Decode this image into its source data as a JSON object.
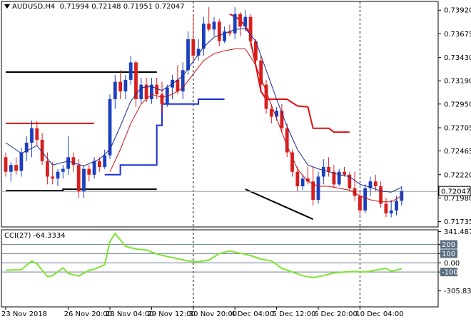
{
  "header": {
    "symbol": "AUDUSD,H4",
    "ohlc": "0.71994 0.72148 0.71951 0.72047"
  },
  "cci_panel": {
    "label": "CCI(27) -64.3334"
  },
  "chart_data": [
    {
      "type": "candlestick",
      "panel": "price",
      "ylim": [
        0.7168,
        0.7401
      ],
      "y_ticks": [
        "0.73920",
        "0.73675",
        "0.73430",
        "0.73190",
        "0.72950",
        "0.72705",
        "0.72465",
        "0.72220",
        "0.71980",
        "0.71735"
      ],
      "y_tick_values": [
        0.7392,
        0.73675,
        0.7343,
        0.7319,
        0.7295,
        0.72705,
        0.72465,
        0.7222,
        0.7198,
        0.71735
      ],
      "current_price": "0.72047",
      "current_price_value": 0.72047,
      "x_labels": [
        "23 Nov 2018",
        "26 Nov 20:00",
        "28 Nov 04:00",
        "29 Nov 12:00",
        "30 Nov 20:00",
        "4 Dec 04:00",
        "5 Dec 12:00",
        "6 Dec 20:00",
        "10 Dec 04:00"
      ],
      "x_label_bars": [
        0,
        12,
        20,
        28,
        36,
        44,
        52,
        60,
        68
      ],
      "separator_bars": [
        36,
        68
      ],
      "colors": {
        "up": "#1c3fbf",
        "down": "#d81e1e",
        "fast_ma": "#1a2b8c",
        "slow_ma": "#c81414",
        "step_blue": "#1c2fd0",
        "step_red": "#e01010",
        "black": "#000000"
      },
      "candles": [
        [
          0.724,
          0.7245,
          0.722,
          0.7225
        ],
        [
          0.7225,
          0.7235,
          0.7215,
          0.7232
        ],
        [
          0.7232,
          0.724,
          0.7222,
          0.7226
        ],
        [
          0.7226,
          0.725,
          0.722,
          0.7245
        ],
        [
          0.7245,
          0.7262,
          0.7236,
          0.7255
        ],
        [
          0.7255,
          0.7278,
          0.724,
          0.727
        ],
        [
          0.727,
          0.7277,
          0.7252,
          0.7258
        ],
        [
          0.7258,
          0.7265,
          0.7232,
          0.7236
        ],
        [
          0.7236,
          0.7245,
          0.7212,
          0.722
        ],
        [
          0.722,
          0.7235,
          0.7212,
          0.7218
        ],
        [
          0.7218,
          0.7228,
          0.721,
          0.7225
        ],
        [
          0.7225,
          0.7232,
          0.7218,
          0.7228
        ],
        [
          0.7228,
          0.7262,
          0.7222,
          0.724
        ],
        [
          0.724,
          0.7245,
          0.7225,
          0.7232
        ],
        [
          0.7232,
          0.7238,
          0.7198,
          0.7205
        ],
        [
          0.7205,
          0.7232,
          0.7198,
          0.7228
        ],
        [
          0.7228,
          0.7232,
          0.7215,
          0.7222
        ],
        [
          0.7222,
          0.724,
          0.7218,
          0.7236
        ],
        [
          0.7236,
          0.724,
          0.7225,
          0.723
        ],
        [
          0.723,
          0.7248,
          0.7228,
          0.7242
        ],
        [
          0.7242,
          0.7305,
          0.7238,
          0.73
        ],
        [
          0.73,
          0.7325,
          0.729,
          0.7318
        ],
        [
          0.7318,
          0.733,
          0.73,
          0.7308
        ],
        [
          0.7308,
          0.7325,
          0.73,
          0.732
        ],
        [
          0.732,
          0.7345,
          0.7315,
          0.7338
        ],
        [
          0.7338,
          0.734,
          0.7292,
          0.73
        ],
        [
          0.73,
          0.7322,
          0.7295,
          0.7315
        ],
        [
          0.7315,
          0.7322,
          0.7297,
          0.73
        ],
        [
          0.73,
          0.7322,
          0.7295,
          0.7315
        ],
        [
          0.7315,
          0.7322,
          0.73,
          0.7305
        ],
        [
          0.7305,
          0.7318,
          0.7286,
          0.7295
        ],
        [
          0.7295,
          0.7315,
          0.7292,
          0.7312
        ],
        [
          0.7312,
          0.7325,
          0.73,
          0.732
        ],
        [
          0.732,
          0.7335,
          0.7305,
          0.7308
        ],
        [
          0.7308,
          0.7338,
          0.73,
          0.733
        ],
        [
          0.733,
          0.737,
          0.7325,
          0.7362
        ],
        [
          0.7362,
          0.7388,
          0.734,
          0.7345
        ],
        [
          0.7345,
          0.7362,
          0.734,
          0.7352
        ],
        [
          0.7352,
          0.7385,
          0.7345,
          0.7378
        ],
        [
          0.7378,
          0.7395,
          0.737,
          0.7372
        ],
        [
          0.7372,
          0.7385,
          0.7365,
          0.738
        ],
        [
          0.738,
          0.7383,
          0.7355,
          0.736
        ],
        [
          0.736,
          0.7375,
          0.7358,
          0.737
        ],
        [
          0.737,
          0.7377,
          0.7365,
          0.7368
        ],
        [
          0.7368,
          0.7395,
          0.7362,
          0.7388
        ],
        [
          0.7388,
          0.739,
          0.7365,
          0.7375
        ],
        [
          0.7375,
          0.7392,
          0.737,
          0.7385
        ],
        [
          0.7385,
          0.7388,
          0.7355,
          0.736
        ],
        [
          0.736,
          0.7362,
          0.7335,
          0.734
        ],
        [
          0.734,
          0.7345,
          0.731,
          0.7315
        ],
        [
          0.7315,
          0.732,
          0.7285,
          0.729
        ],
        [
          0.729,
          0.7295,
          0.7275,
          0.7282
        ],
        [
          0.7282,
          0.7292,
          0.7278,
          0.7288
        ],
        [
          0.7288,
          0.7295,
          0.7265,
          0.727
        ],
        [
          0.727,
          0.7275,
          0.724,
          0.7245
        ],
        [
          0.7245,
          0.7248,
          0.722,
          0.7225
        ],
        [
          0.7225,
          0.723,
          0.7205,
          0.721
        ],
        [
          0.721,
          0.7222,
          0.7206,
          0.7218
        ],
        [
          0.7218,
          0.723,
          0.7212,
          0.7215
        ],
        [
          0.7215,
          0.723,
          0.719,
          0.7196
        ],
        [
          0.7196,
          0.7225,
          0.7192,
          0.722
        ],
        [
          0.722,
          0.7238,
          0.7212,
          0.723
        ],
        [
          0.723,
          0.724,
          0.722,
          0.7225
        ],
        [
          0.7225,
          0.7232,
          0.7208,
          0.7212
        ],
        [
          0.7212,
          0.7228,
          0.721,
          0.7225
        ],
        [
          0.7225,
          0.723,
          0.722,
          0.7222
        ],
        [
          0.7222,
          0.7225,
          0.7205,
          0.7208
        ],
        [
          0.7208,
          0.7225,
          0.7195,
          0.72
        ],
        [
          0.72,
          0.7205,
          0.718,
          0.7185
        ],
        [
          0.7185,
          0.7212,
          0.7182,
          0.7208
        ],
        [
          0.7208,
          0.722,
          0.72,
          0.7215
        ],
        [
          0.7215,
          0.7222,
          0.7205,
          0.721
        ],
        [
          0.721,
          0.7215,
          0.7188,
          0.7192
        ],
        [
          0.7192,
          0.7198,
          0.7178,
          0.7182
        ],
        [
          0.7182,
          0.7196,
          0.7178,
          0.7185
        ],
        [
          0.7185,
          0.72,
          0.718,
          0.7195
        ],
        [
          0.7195,
          0.721,
          0.719,
          0.7205
        ]
      ],
      "fast_ma": [
        [
          0,
          0.7255
        ],
        [
          3,
          0.7244
        ],
        [
          6,
          0.7252
        ],
        [
          9,
          0.7232
        ],
        [
          12,
          0.7236
        ],
        [
          15,
          0.7231
        ],
        [
          18,
          0.7238
        ],
        [
          20,
          0.7248
        ],
        [
          22,
          0.7272
        ],
        [
          24,
          0.7298
        ],
        [
          26,
          0.7312
        ],
        [
          28,
          0.7313
        ],
        [
          30,
          0.7309
        ],
        [
          32,
          0.7316
        ],
        [
          34,
          0.7324
        ],
        [
          36,
          0.7339
        ],
        [
          38,
          0.7354
        ],
        [
          40,
          0.7364
        ],
        [
          42,
          0.7368
        ],
        [
          44,
          0.7372
        ],
        [
          46,
          0.7373
        ],
        [
          48,
          0.736
        ],
        [
          50,
          0.733
        ],
        [
          52,
          0.73
        ],
        [
          54,
          0.7272
        ],
        [
          56,
          0.7248
        ],
        [
          58,
          0.7232
        ],
        [
          60,
          0.7228
        ],
        [
          62,
          0.7225
        ],
        [
          64,
          0.7222
        ],
        [
          66,
          0.722
        ],
        [
          68,
          0.7212
        ],
        [
          70,
          0.7209
        ],
        [
          72,
          0.7205
        ],
        [
          74,
          0.7204
        ],
        [
          76,
          0.7209
        ]
      ],
      "slow_ma": [
        [
          20,
          0.7225
        ],
        [
          22,
          0.7248
        ],
        [
          24,
          0.7275
        ],
        [
          26,
          0.7295
        ],
        [
          28,
          0.7305
        ],
        [
          30,
          0.7302
        ],
        [
          32,
          0.7305
        ],
        [
          34,
          0.7312
        ],
        [
          36,
          0.7326
        ],
        [
          38,
          0.734
        ],
        [
          40,
          0.7347
        ],
        [
          42,
          0.735
        ],
        [
          44,
          0.7352
        ],
        [
          46,
          0.7352
        ],
        [
          48,
          0.7335
        ],
        [
          50,
          0.7308
        ],
        [
          52,
          0.728
        ],
        [
          54,
          0.7252
        ],
        [
          56,
          0.7228
        ],
        [
          58,
          0.7215
        ],
        [
          60,
          0.721
        ],
        [
          62,
          0.721
        ],
        [
          64,
          0.7208
        ],
        [
          66,
          0.7206
        ],
        [
          68,
          0.72
        ],
        [
          70,
          0.7196
        ],
        [
          72,
          0.7194
        ],
        [
          74,
          0.7194
        ],
        [
          76,
          0.72
        ]
      ],
      "blue_step": [
        [
          19,
          0.7222
        ],
        [
          22,
          0.7222
        ],
        [
          22,
          0.7232
        ],
        [
          25,
          0.7232
        ],
        [
          29,
          0.7232
        ],
        [
          29,
          0.7273
        ],
        [
          30,
          0.7273
        ],
        [
          30,
          0.7295
        ],
        [
          37,
          0.7295
        ],
        [
          37,
          0.73
        ],
        [
          42,
          0.73
        ]
      ],
      "red_step": [
        [
          43,
          0.7388
        ],
        [
          45,
          0.7382
        ],
        [
          47,
          0.7368
        ],
        [
          47,
          0.736
        ],
        [
          48,
          0.7335
        ],
        [
          49,
          0.7308
        ],
        [
          50,
          0.73
        ],
        [
          54,
          0.73
        ],
        [
          56,
          0.7293
        ],
        [
          58,
          0.7292
        ],
        [
          59,
          0.727
        ],
        [
          62,
          0.727
        ],
        [
          63,
          0.7266
        ],
        [
          66,
          0.7266
        ]
      ],
      "red_hline": [
        [
          0,
          0.7275
        ],
        [
          17,
          0.7275
        ]
      ],
      "black_hline_top": [
        [
          0,
          0.7328
        ],
        [
          29,
          0.7328
        ]
      ],
      "black_hline_bottom": [
        [
          0,
          0.72055
        ],
        [
          11,
          0.72055
        ],
        [
          11,
          0.7207
        ],
        [
          29,
          0.7207
        ]
      ],
      "black_trendline": [
        [
          46,
          0.7207
        ],
        [
          59,
          0.7176
        ]
      ]
    },
    {
      "type": "line",
      "panel": "cci",
      "name": "CCI(27)",
      "ylim": [
        -480,
        360
      ],
      "y_ticks": [
        "341.4876",
        "200",
        "100",
        "0.00",
        "-100",
        "-305.8307"
      ],
      "y_tick_values": [
        341.4876,
        200,
        100,
        0,
        -100,
        -305.8307
      ],
      "boxed_levels": [
        200,
        100,
        -100
      ],
      "hlines": [
        200,
        100,
        0,
        -100
      ],
      "line_color": "#7fe32f",
      "values": [
        [
          0,
          -80
        ],
        [
          3,
          -75
        ],
        [
          5,
          20
        ],
        [
          6,
          -10
        ],
        [
          8,
          -150
        ],
        [
          9,
          -140
        ],
        [
          11,
          -55
        ],
        [
          12,
          -115
        ],
        [
          14,
          -145
        ],
        [
          16,
          -80
        ],
        [
          17,
          -70
        ],
        [
          19,
          -20
        ],
        [
          20,
          230
        ],
        [
          21,
          320
        ],
        [
          22,
          250
        ],
        [
          23,
          180
        ],
        [
          25,
          150
        ],
        [
          27,
          140
        ],
        [
          29,
          95
        ],
        [
          31,
          70
        ],
        [
          33,
          45
        ],
        [
          35,
          20
        ],
        [
          37,
          10
        ],
        [
          39,
          30
        ],
        [
          41,
          100
        ],
        [
          43,
          130
        ],
        [
          45,
          105
        ],
        [
          47,
          80
        ],
        [
          49,
          40
        ],
        [
          51,
          20
        ],
        [
          53,
          -60
        ],
        [
          55,
          -100
        ],
        [
          57,
          -140
        ],
        [
          59,
          -160
        ],
        [
          61,
          -140
        ],
        [
          63,
          -110
        ],
        [
          65,
          -100
        ],
        [
          67,
          -95
        ],
        [
          69,
          -100
        ],
        [
          71,
          -80
        ],
        [
          73,
          -60
        ],
        [
          74,
          -90
        ],
        [
          75,
          -80
        ],
        [
          76,
          -64
        ]
      ]
    }
  ]
}
